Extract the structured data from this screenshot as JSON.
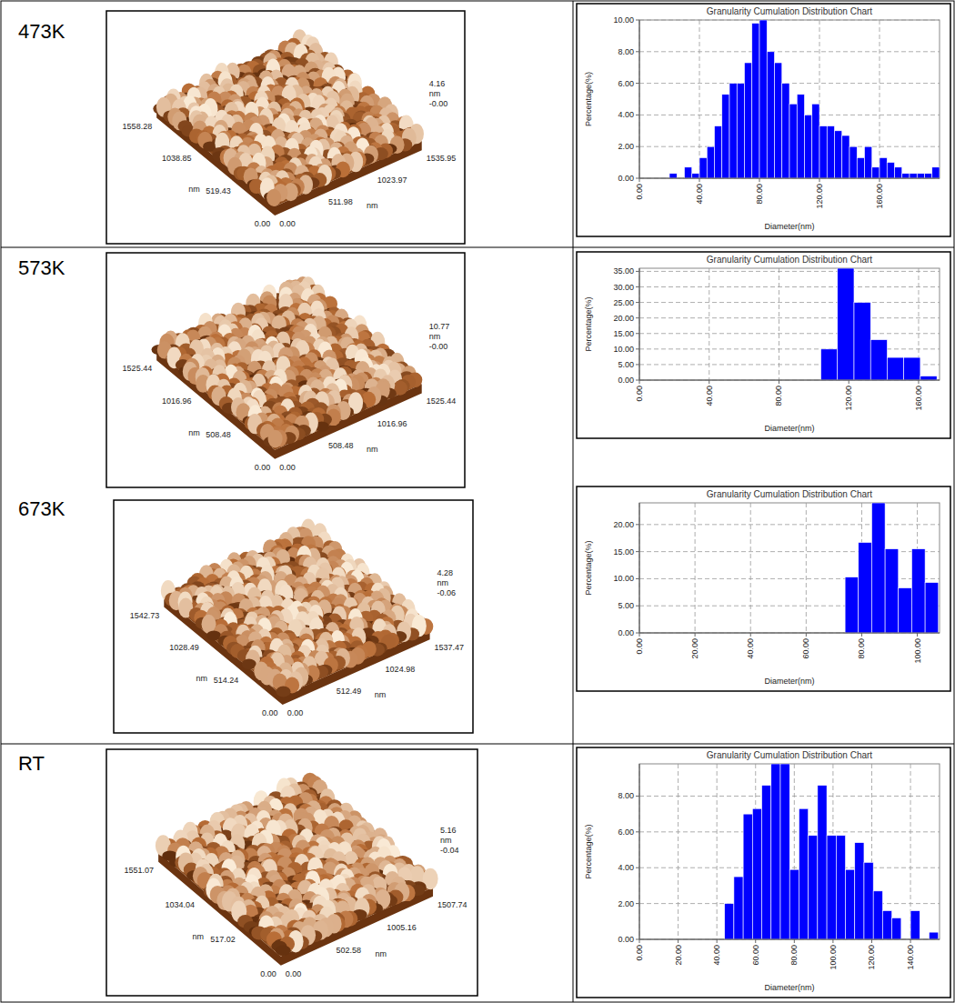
{
  "chart_data": [
    {
      "type": "histogram",
      "title": "Granularity Cumulation Distribution Chart",
      "x_label": "Diameter(nm)",
      "y_label": "Percentage(%)",
      "color": "#0000ff",
      "grid": true,
      "bins": [
        20,
        25,
        30,
        35,
        40,
        45,
        50,
        55,
        60,
        65,
        70,
        75,
        80,
        85,
        90,
        95,
        100,
        105,
        110,
        115,
        120,
        125,
        130,
        135,
        140,
        145,
        150,
        155,
        160,
        165,
        170,
        175,
        180,
        185,
        190,
        195,
        200
      ],
      "values": [
        0.3,
        0,
        0.7,
        0.3,
        1.3,
        2.0,
        3.3,
        5.3,
        6.0,
        6.0,
        7.3,
        9.8,
        10.0,
        8.0,
        7.3,
        6.0,
        4.7,
        5.3,
        4.0,
        4.7,
        3.3,
        3.3,
        3.0,
        2.7,
        2.0,
        1.3,
        2.0,
        0.7,
        1.3,
        1.0,
        0.7,
        0.3,
        0.3,
        0.3,
        0.3,
        0.7
      ],
      "xlim": [
        0,
        200
      ],
      "xticks": [
        {
          "value": 0,
          "label": "0.00"
        },
        {
          "value": 40,
          "label": "40.00"
        },
        {
          "value": 80,
          "label": "80.00"
        },
        {
          "value": 120,
          "label": "120.00"
        },
        {
          "value": 160,
          "label": "160.00"
        }
      ],
      "ylim": [
        0,
        10
      ],
      "yticks": [
        {
          "value": 0,
          "label": "0.00"
        },
        {
          "value": 2,
          "label": "2.00"
        },
        {
          "value": 4,
          "label": "4.00"
        },
        {
          "value": 6,
          "label": "6.00"
        },
        {
          "value": 8,
          "label": "8.00"
        },
        {
          "value": 10,
          "label": "10.00"
        }
      ]
    },
    {
      "type": "histogram",
      "title": "Granularity Cumulation Distribution Chart",
      "x_label": "Diameter(nm)",
      "y_label": "Percentage(%)",
      "color": "#0000ff",
      "grid": true,
      "bins": [
        104,
        113.5,
        123,
        132.5,
        142,
        151.5,
        161,
        170.5
      ],
      "values": [
        10,
        36,
        25,
        13,
        7.3,
        7.3,
        1.3
      ],
      "xlim": [
        0,
        172
      ],
      "xticks": [
        {
          "value": 0,
          "label": "0.00"
        },
        {
          "value": 40,
          "label": "40.00"
        },
        {
          "value": 80,
          "label": "80.00"
        },
        {
          "value": 120,
          "label": "120.00"
        },
        {
          "value": 160,
          "label": "160.00"
        }
      ],
      "ylim": [
        0,
        36
      ],
      "yticks": [
        {
          "value": 0,
          "label": "0.00"
        },
        {
          "value": 5,
          "label": "5.00"
        },
        {
          "value": 10,
          "label": "10.00"
        },
        {
          "value": 15,
          "label": "15.00"
        },
        {
          "value": 20,
          "label": "20.00"
        },
        {
          "value": 25,
          "label": "25.00"
        },
        {
          "value": 30,
          "label": "30.00"
        },
        {
          "value": 35,
          "label": "35.00"
        }
      ]
    },
    {
      "type": "histogram",
      "title": "Granularity Cumulation Distribution Chart",
      "x_label": "Diameter(nm)",
      "y_label": "Percentage(%)",
      "color": "#0000ff",
      "grid": true,
      "bins": [
        74,
        78.8,
        83.6,
        88.4,
        93.2,
        98,
        102.8,
        107.6
      ],
      "values": [
        10.3,
        16.7,
        24,
        15.5,
        8.3,
        15.5,
        9.3
      ],
      "xlim": [
        0,
        108
      ],
      "xticks": [
        {
          "value": 0,
          "label": "0.00"
        },
        {
          "value": 20,
          "label": "20.00"
        },
        {
          "value": 40,
          "label": "40.00"
        },
        {
          "value": 60,
          "label": "60.00"
        },
        {
          "value": 80,
          "label": "80.00"
        },
        {
          "value": 100,
          "label": "100.00"
        }
      ],
      "ylim": [
        0,
        24
      ],
      "yticks": [
        {
          "value": 0,
          "label": "0.00"
        },
        {
          "value": 5,
          "label": "5.00"
        },
        {
          "value": 10,
          "label": "10.00"
        },
        {
          "value": 15,
          "label": "15.00"
        },
        {
          "value": 20,
          "label": "20.00"
        }
      ]
    },
    {
      "type": "histogram",
      "title": "Granularity Cumulation Distribution Chart",
      "x_label": "Diameter(nm)",
      "y_label": "Percentage(%)",
      "color": "#0000ff",
      "grid": true,
      "bins": [
        44,
        48.8,
        53.6,
        58.4,
        63.2,
        68,
        72.8,
        77.6,
        82.4,
        87.2,
        92,
        96.8,
        101.6,
        106.4,
        111.2,
        116,
        120.8,
        125.6,
        130.4,
        135.2,
        140,
        144.8,
        149.6,
        154.4
      ],
      "values": [
        2.0,
        3.5,
        7.0,
        7.3,
        8.6,
        9.8,
        9.8,
        3.9,
        7.3,
        5.8,
        8.6,
        5.8,
        5.8,
        3.9,
        5.4,
        4.3,
        2.7,
        1.6,
        1.2,
        0,
        1.6,
        0,
        0.4
      ],
      "xlim": [
        0,
        155
      ],
      "xticks": [
        {
          "value": 0,
          "label": "0.00"
        },
        {
          "value": 20,
          "label": "20.00"
        },
        {
          "value": 40,
          "label": "40.00"
        },
        {
          "value": 60,
          "label": "60.00"
        },
        {
          "value": 80,
          "label": "80.00"
        },
        {
          "value": 100,
          "label": "100.00"
        },
        {
          "value": 120,
          "label": "120.00"
        },
        {
          "value": 140,
          "label": "140.00"
        }
      ],
      "ylim": [
        0,
        9.8
      ],
      "yticks": [
        {
          "value": 0,
          "label": "0.00"
        },
        {
          "value": 2,
          "label": "2.00"
        },
        {
          "value": 4,
          "label": "4.00"
        },
        {
          "value": 6,
          "label": "6.00"
        },
        {
          "value": 8,
          "label": "8.00"
        }
      ]
    }
  ],
  "panels": [
    {
      "label": "473K",
      "afm": {
        "z_max": "4.16",
        "z_min": "-0.00",
        "unit": "nm",
        "x_ticks": [
          "0.00",
          "511.98",
          "1023.97",
          "1535.95"
        ],
        "y_ticks": [
          "0.00",
          "519.43",
          "1038.85",
          "1558.28"
        ]
      }
    },
    {
      "label": "573K",
      "afm": {
        "z_max": "10.77",
        "z_min": "-0.00",
        "unit": "nm",
        "x_ticks": [
          "0.00",
          "508.48",
          "1016.96",
          "1525.44"
        ],
        "y_ticks": [
          "0.00",
          "508.48",
          "1016.96",
          "1525.44"
        ]
      }
    },
    {
      "label": "673K",
      "afm": {
        "z_max": "4.28",
        "z_min": "-0.06",
        "unit": "nm",
        "x_ticks": [
          "0.00",
          "512.49",
          "1024.98",
          "1537.47"
        ],
        "y_ticks": [
          "0.00",
          "514.24",
          "1028.49",
          "1542.73"
        ]
      }
    },
    {
      "label": "RT",
      "afm": {
        "z_max": "5.16",
        "z_min": "-0.04",
        "unit": "nm",
        "x_ticks": [
          "0.00",
          "502.58",
          "1005.16",
          "1507.74"
        ],
        "y_ticks": [
          "0.00",
          "517.02",
          "1034.04",
          "1551.07"
        ]
      }
    }
  ]
}
